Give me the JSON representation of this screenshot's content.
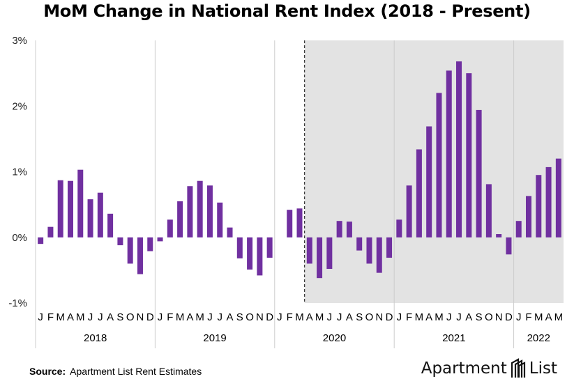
{
  "title": "MoM Change in National Rent Index (2018 - Present)",
  "source_label": "Source:",
  "source_text": "Apartment List Rent Estimates",
  "logo": {
    "left": "Apartment",
    "right": "List",
    "icon": "apartment-list-logo-icon"
  },
  "colors": {
    "bar": "#7030a0",
    "shade": "#e3e3e3",
    "grid": "#cccccc",
    "text": "#000000"
  },
  "chart_data": {
    "type": "bar",
    "ylim": [
      -1,
      3
    ],
    "y_ticks": [
      "-1%",
      "0%",
      "1%",
      "2%",
      "3%"
    ],
    "y_tick_values": [
      -1,
      0,
      1,
      2,
      3
    ],
    "grid": "vertical year separators",
    "shaded_region": {
      "from": "2020-04",
      "to": "2022-05",
      "note": "shaded background"
    },
    "marker": {
      "at": "2020-04",
      "style": "dashed vertical line"
    },
    "years": [
      {
        "label": "2018",
        "months": [
          "J",
          "F",
          "M",
          "A",
          "M",
          "J",
          "J",
          "A",
          "S",
          "O",
          "N",
          "D"
        ]
      },
      {
        "label": "2019",
        "months": [
          "J",
          "F",
          "M",
          "A",
          "M",
          "J",
          "J",
          "A",
          "S",
          "O",
          "N",
          "D"
        ]
      },
      {
        "label": "2020",
        "months": [
          "J",
          "F",
          "M",
          "A",
          "M",
          "J",
          "J",
          "A",
          "S",
          "O",
          "N",
          "D"
        ]
      },
      {
        "label": "2021",
        "months": [
          "J",
          "F",
          "M",
          "A",
          "M",
          "J",
          "J",
          "A",
          "S",
          "O",
          "N",
          "D"
        ]
      },
      {
        "label": "2022",
        "months": [
          "J",
          "F",
          "M",
          "A",
          "M"
        ]
      }
    ],
    "values": [
      -0.1,
      0.16,
      0.87,
      0.86,
      1.03,
      0.58,
      0.68,
      0.36,
      -0.12,
      -0.4,
      -0.56,
      -0.21,
      -0.06,
      0.27,
      0.55,
      0.78,
      0.86,
      0.79,
      0.53,
      0.15,
      -0.32,
      -0.49,
      -0.58,
      -0.31,
      0.0,
      0.42,
      0.44,
      -0.4,
      -0.62,
      -0.48,
      0.25,
      0.24,
      -0.2,
      -0.4,
      -0.54,
      -0.31,
      0.27,
      0.79,
      1.34,
      1.69,
      2.2,
      2.54,
      2.68,
      2.5,
      1.94,
      0.81,
      0.05,
      -0.26,
      0.25,
      0.63,
      0.95,
      1.07,
      1.2
    ]
  }
}
